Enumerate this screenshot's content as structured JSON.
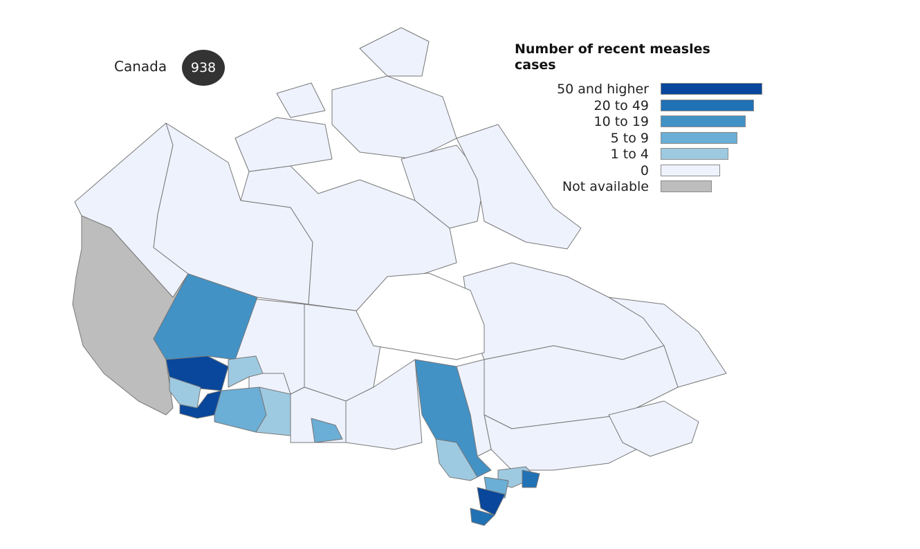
{
  "national_total": {
    "label": "Canada",
    "count": "938"
  },
  "legend": {
    "title": "Number of recent measles cases",
    "items": [
      {
        "label": "50 and higher",
        "color": "#08479b"
      },
      {
        "label": "20 to 49",
        "color": "#2171b5"
      },
      {
        "label": "10 to 19",
        "color": "#4292c6"
      },
      {
        "label": "5 to 9",
        "color": "#6baed6"
      },
      {
        "label": "1 to 4",
        "color": "#9ecae1"
      },
      {
        "label": "0",
        "color": "#eef2fd"
      },
      {
        "label": "Not available",
        "color": "#bdbdbd"
      }
    ]
  },
  "colors": {
    "region_border": "#777777",
    "background": "#ffffff"
  }
}
